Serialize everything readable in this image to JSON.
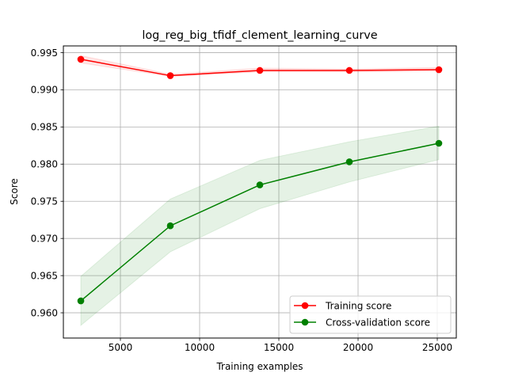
{
  "chart_data": {
    "type": "line",
    "title": "log_reg_big_tfidf_clement_learning_curve",
    "xlabel": "Training examples",
    "ylabel": "Score",
    "xlim": [
      1400,
      26200
    ],
    "ylim": [
      0.9566,
      0.9959
    ],
    "xticks": [
      5000,
      10000,
      15000,
      20000,
      25000
    ],
    "xtick_labels": [
      "5000",
      "10000",
      "15000",
      "20000",
      "25000"
    ],
    "yticks": [
      0.96,
      0.965,
      0.97,
      0.975,
      0.98,
      0.985,
      0.99,
      0.995
    ],
    "ytick_labels": [
      "0.960",
      "0.965",
      "0.970",
      "0.975",
      "0.980",
      "0.985",
      "0.990",
      "0.995"
    ],
    "grid": true,
    "legend_position": "lower-right",
    "x": [
      2500,
      8150,
      13800,
      19450,
      25100
    ],
    "series": [
      {
        "name": "Training score",
        "color": "#ff0000",
        "band_color": "#ff0000",
        "values": [
          0.9941,
          0.9919,
          0.9926,
          0.9926,
          0.9927
        ],
        "lower": [
          0.9936,
          0.9918,
          0.9924,
          0.9924,
          0.9925
        ],
        "upper": [
          0.9946,
          0.9921,
          0.9929,
          0.9928,
          0.993
        ]
      },
      {
        "name": "Cross-validation score",
        "color": "#008000",
        "band_color": "#008000",
        "values": [
          0.9616,
          0.9717,
          0.9772,
          0.9803,
          0.9828
        ],
        "lower": [
          0.9583,
          0.9682,
          0.974,
          0.9776,
          0.9806
        ],
        "upper": [
          0.9649,
          0.9753,
          0.9805,
          0.983,
          0.9851
        ]
      }
    ]
  }
}
